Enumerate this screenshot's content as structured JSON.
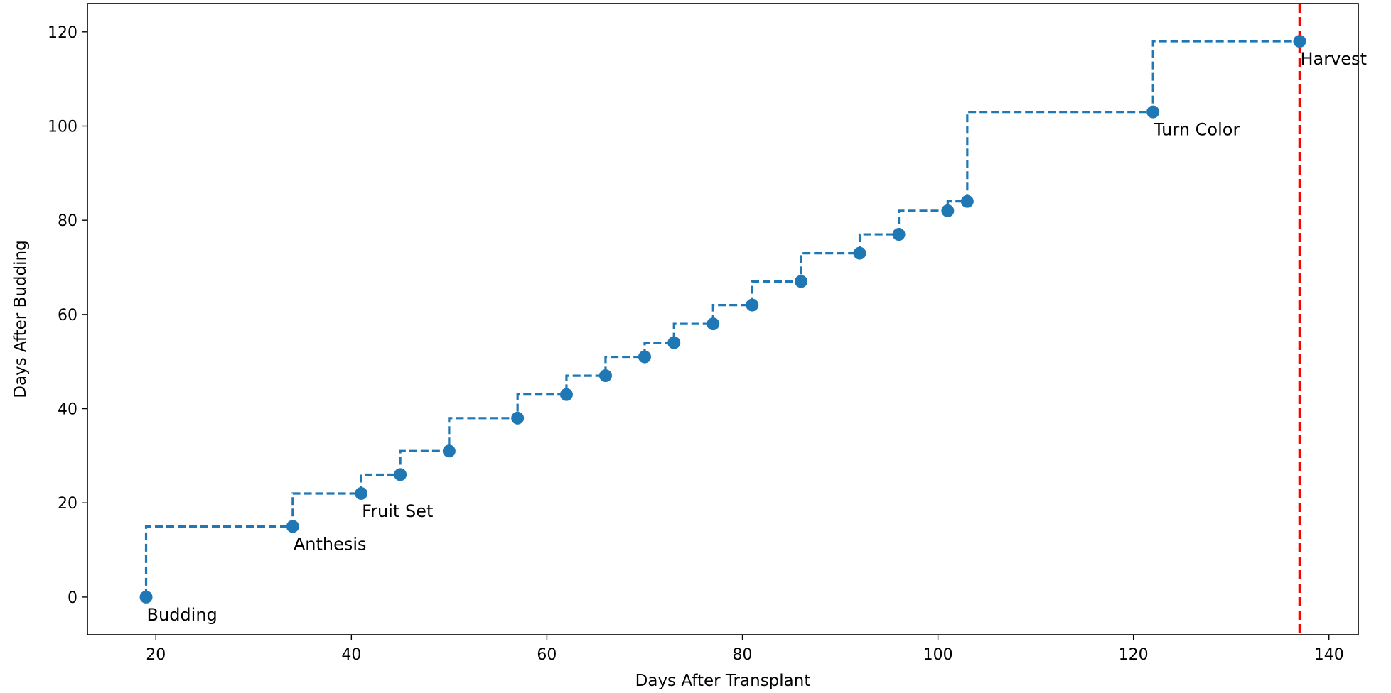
{
  "chart_data": {
    "type": "line",
    "title": "",
    "xlabel": "Days After Transplant",
    "ylabel": "Days After Budding",
    "xlim": [
      13,
      143
    ],
    "ylim": [
      -8,
      126
    ],
    "xticks": [
      20,
      40,
      60,
      80,
      100,
      120,
      140
    ],
    "yticks": [
      0,
      20,
      40,
      60,
      80,
      100,
      120
    ],
    "grid": false,
    "legend": "none",
    "step": "pre",
    "line_style": "dashed",
    "series": [
      {
        "color": "#1f77b4",
        "x": [
          19,
          34,
          41,
          45,
          50,
          57,
          62,
          66,
          70,
          73,
          77,
          81,
          86,
          92,
          96,
          101,
          103,
          122,
          137
        ],
        "y": [
          0,
          15,
          22,
          26,
          31,
          38,
          43,
          47,
          51,
          54,
          58,
          62,
          67,
          73,
          77,
          82,
          84,
          103,
          118
        ]
      }
    ],
    "annotations": [
      {
        "label": "Budding",
        "x": 19,
        "y": 0
      },
      {
        "label": "Anthesis",
        "x": 34,
        "y": 15
      },
      {
        "label": "Fruit Set",
        "x": 41,
        "y": 22
      },
      {
        "label": "Turn Color",
        "x": 122,
        "y": 103
      },
      {
        "label": "Harvest",
        "x": 137,
        "y": 118
      }
    ],
    "vline": {
      "x": 137,
      "color": "#ff0000",
      "style": "dashed"
    }
  }
}
